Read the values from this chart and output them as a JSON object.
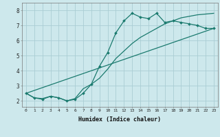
{
  "xlabel": "Humidex (Indice chaleur)",
  "bg_color": "#cde8ec",
  "grid_color": "#aacdd4",
  "line_color": "#1a7a6e",
  "xlim": [
    -0.5,
    23.5
  ],
  "ylim": [
    1.6,
    8.5
  ],
  "xticks": [
    0,
    1,
    2,
    3,
    4,
    5,
    6,
    7,
    8,
    9,
    10,
    11,
    12,
    13,
    14,
    15,
    16,
    17,
    18,
    19,
    20,
    21,
    22,
    23
  ],
  "yticks": [
    2,
    3,
    4,
    5,
    6,
    7,
    8
  ],
  "curve1_x": [
    0,
    1,
    2,
    3,
    4,
    5,
    6,
    7,
    8,
    9,
    10,
    11,
    12,
    13,
    14,
    15,
    16,
    17,
    18,
    19,
    20,
    21,
    22,
    23
  ],
  "curve1_y": [
    2.5,
    2.2,
    2.1,
    2.3,
    2.2,
    2.0,
    2.1,
    2.5,
    3.1,
    4.3,
    5.2,
    6.5,
    7.3,
    7.8,
    7.55,
    7.45,
    7.8,
    7.2,
    7.3,
    7.2,
    7.1,
    7.0,
    6.8,
    6.8
  ],
  "curve2_x": [
    0,
    1,
    2,
    3,
    4,
    5,
    6,
    7,
    8,
    9,
    10,
    11,
    12,
    13,
    14,
    15,
    16,
    17,
    18,
    19,
    20,
    21,
    22,
    23
  ],
  "curve2_y": [
    2.5,
    2.2,
    2.15,
    2.3,
    2.2,
    2.0,
    2.15,
    2.8,
    3.1,
    3.5,
    4.1,
    4.8,
    5.3,
    5.8,
    6.2,
    6.5,
    6.8,
    7.1,
    7.3,
    7.5,
    7.6,
    7.7,
    7.75,
    7.8
  ],
  "curve3_x": [
    0,
    23
  ],
  "curve3_y": [
    2.5,
    6.8
  ]
}
